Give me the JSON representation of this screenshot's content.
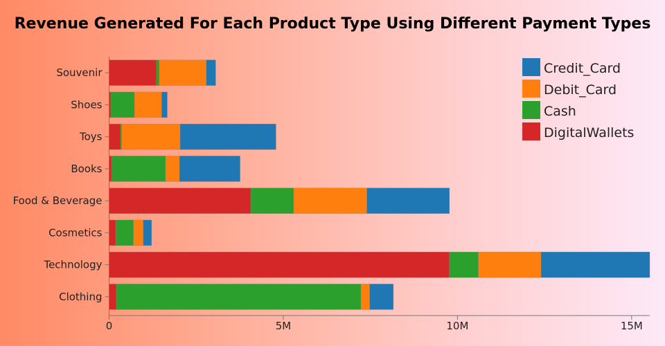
{
  "chart_data": {
    "type": "bar",
    "orientation": "horizontal",
    "stacked": true,
    "title": "Revenue Generated For Each Product Type Using Different Payment Types",
    "xlabel": "",
    "ylabel": "",
    "xlim": [
      0,
      15.52
    ],
    "x_unit": "M",
    "x_ticks": [
      0,
      5,
      10,
      15
    ],
    "x_tick_labels": [
      "0",
      "5M",
      "10M",
      "15M"
    ],
    "categories": [
      "Souvenir",
      "Shoes",
      "Toys",
      "Books",
      "Food & Beverage",
      "Cosmetics",
      "Technology",
      "Clothing"
    ],
    "series": [
      {
        "name": "DigitalWallets",
        "color": "#d62728",
        "values": [
          1.36,
          0.05,
          0.33,
          0.07,
          4.07,
          0.19,
          9.77,
          0.21
        ]
      },
      {
        "name": "Cash",
        "color": "#2ca02c",
        "values": [
          0.08,
          0.68,
          0.03,
          1.55,
          1.23,
          0.51,
          0.83,
          7.02
        ]
      },
      {
        "name": "Debit_Card",
        "color": "#ff7f0e",
        "values": [
          1.35,
          0.78,
          1.68,
          0.4,
          2.1,
          0.28,
          1.8,
          0.25
        ]
      },
      {
        "name": "Credit_Card",
        "color": "#1f77b4",
        "values": [
          0.27,
          0.16,
          2.75,
          1.74,
          2.37,
          0.24,
          3.12,
          0.68
        ]
      }
    ],
    "legend_order": [
      "Credit_Card",
      "Debit_Card",
      "Cash",
      "DigitalWallets"
    ],
    "legend_position": "top-right",
    "grid": false
  }
}
